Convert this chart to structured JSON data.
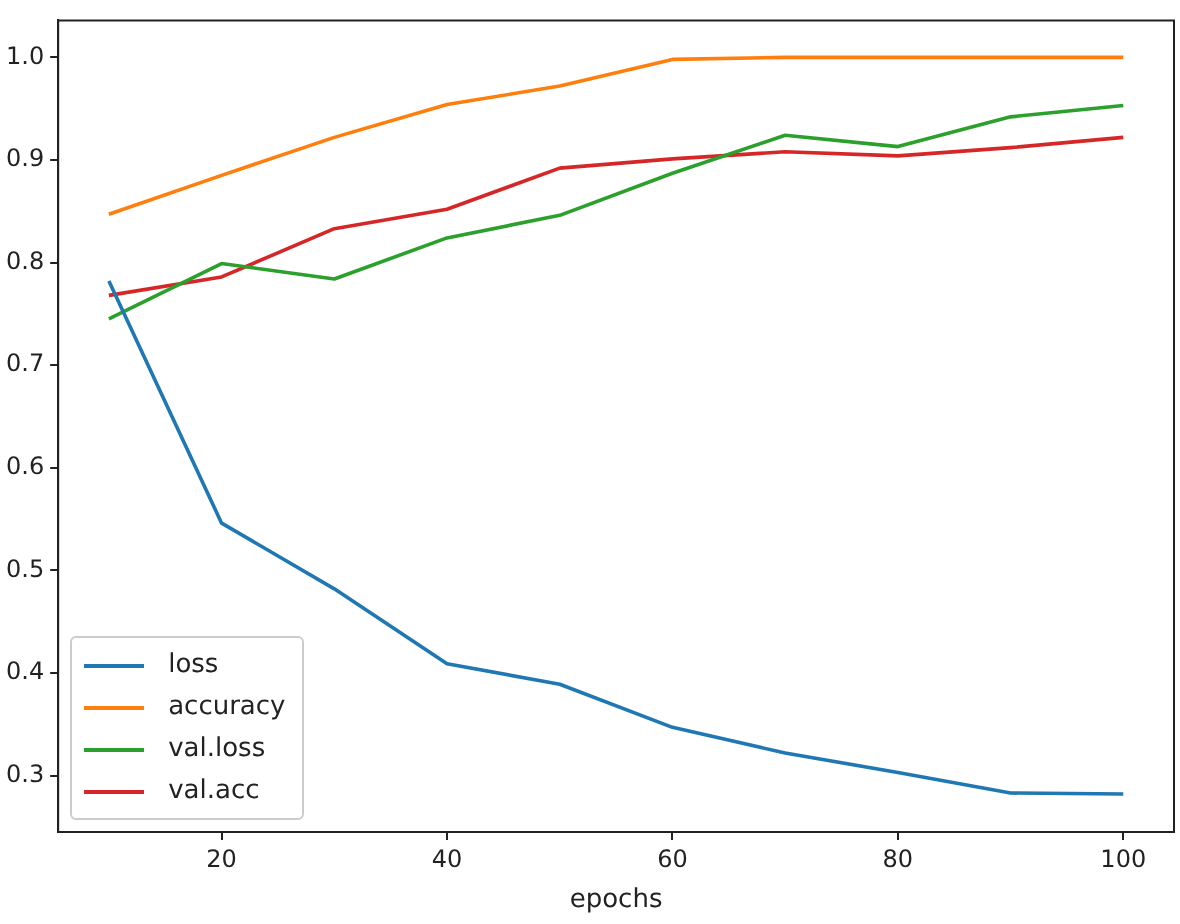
{
  "chart_data": {
    "type": "line",
    "xlabel": "epochs",
    "x": [
      10,
      20,
      30,
      40,
      50,
      60,
      70,
      80,
      90,
      100
    ],
    "xlim": [
      5.5,
      104.5
    ],
    "xticks": [
      20,
      40,
      60,
      80,
      100
    ],
    "ylim": [
      0.245,
      1.036
    ],
    "yticks": [
      {
        "value": 0.3,
        "label": "0.3"
      },
      {
        "value": 0.4,
        "label": "0.4"
      },
      {
        "value": 0.5,
        "label": "0.5"
      },
      {
        "value": 0.6,
        "label": "0.6"
      },
      {
        "value": 0.7,
        "label": "0.7"
      },
      {
        "value": 0.8,
        "label": "0.8"
      },
      {
        "value": 0.9,
        "label": "0.9"
      },
      {
        "value": 1.0,
        "label": "1.0"
      }
    ],
    "series": [
      {
        "name": "loss",
        "color": "#1f77b4",
        "values": [
          0.782,
          0.546,
          0.482,
          0.409,
          0.389,
          0.347,
          0.322,
          0.303,
          0.283,
          0.282
        ]
      },
      {
        "name": "accuracy",
        "color": "#ff7f0e",
        "values": [
          0.847,
          0.885,
          0.922,
          0.954,
          0.972,
          0.998,
          1.0,
          1.0,
          1.0,
          1.0
        ]
      },
      {
        "name": "val.loss",
        "color": "#2ca02c",
        "values": [
          0.745,
          0.799,
          0.784,
          0.824,
          0.846,
          0.887,
          0.924,
          0.913,
          0.942,
          0.953
        ]
      },
      {
        "name": "val.acc",
        "color": "#d62728",
        "values": [
          0.768,
          0.786,
          0.833,
          0.852,
          0.892,
          0.901,
          0.908,
          0.904,
          0.912,
          0.922
        ]
      }
    ],
    "legend": "bottom left",
    "grid": false
  }
}
